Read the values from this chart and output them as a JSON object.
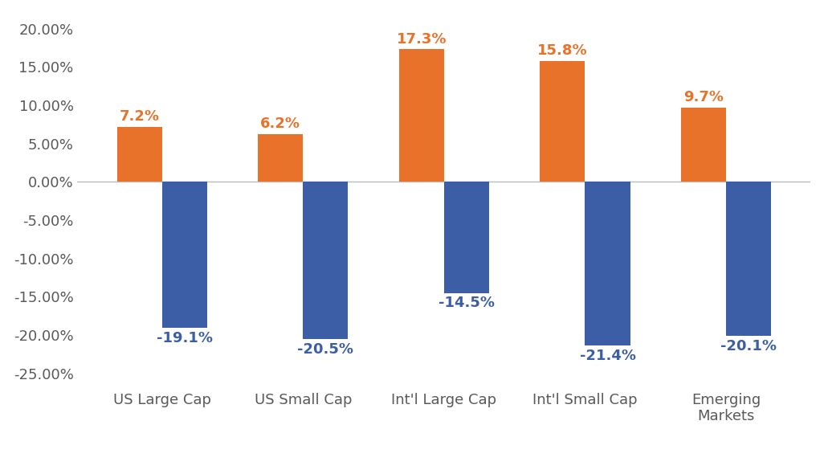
{
  "categories": [
    "US Large Cap",
    "US Small Cap",
    "Int'l Large Cap",
    "Int'l Small Cap",
    "Emerging\nMarkets"
  ],
  "quarter_to_date": [
    7.2,
    6.2,
    17.3,
    15.8,
    9.7
  ],
  "year_to_date": [
    -19.1,
    -20.5,
    -14.5,
    -21.4,
    -20.1
  ],
  "qtd_color": "#E8722A",
  "ytd_color": "#3B5EA6",
  "ylim": [
    -27,
    22
  ],
  "yticks": [
    -25,
    -20,
    -15,
    -10,
    -5,
    0,
    5,
    10,
    15,
    20
  ],
  "bar_width": 0.32,
  "tick_fontsize": 13,
  "legend_fontsize": 13,
  "annotation_fontsize": 13,
  "background_color": "#FFFFFF",
  "zero_line_color": "#BBBBBB",
  "text_color_grey": "#595959"
}
